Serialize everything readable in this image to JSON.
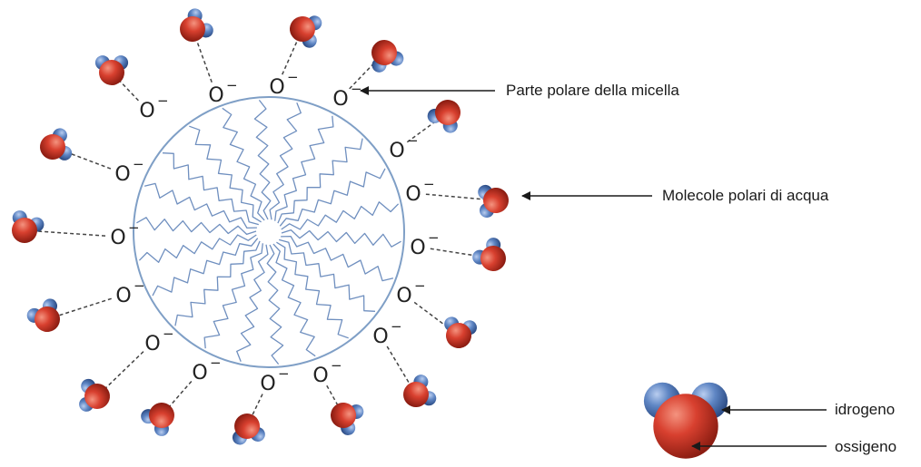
{
  "labels": {
    "polar_part": "Parte polare della micella",
    "water_molecules": "Molecole polari di acqua",
    "hydrogen": "idrogeno",
    "oxygen": "ossigeno"
  },
  "head_group": {
    "symbol": "O",
    "charge": "−"
  },
  "colors": {
    "membrane": "#7f9fc6",
    "tail": "#6f8fbf",
    "oxygen_atom": "#d0392b",
    "hydrogen_atom": "#5277b5",
    "dashed_bond": "#444444",
    "arrow": "#1a1a1a"
  }
}
